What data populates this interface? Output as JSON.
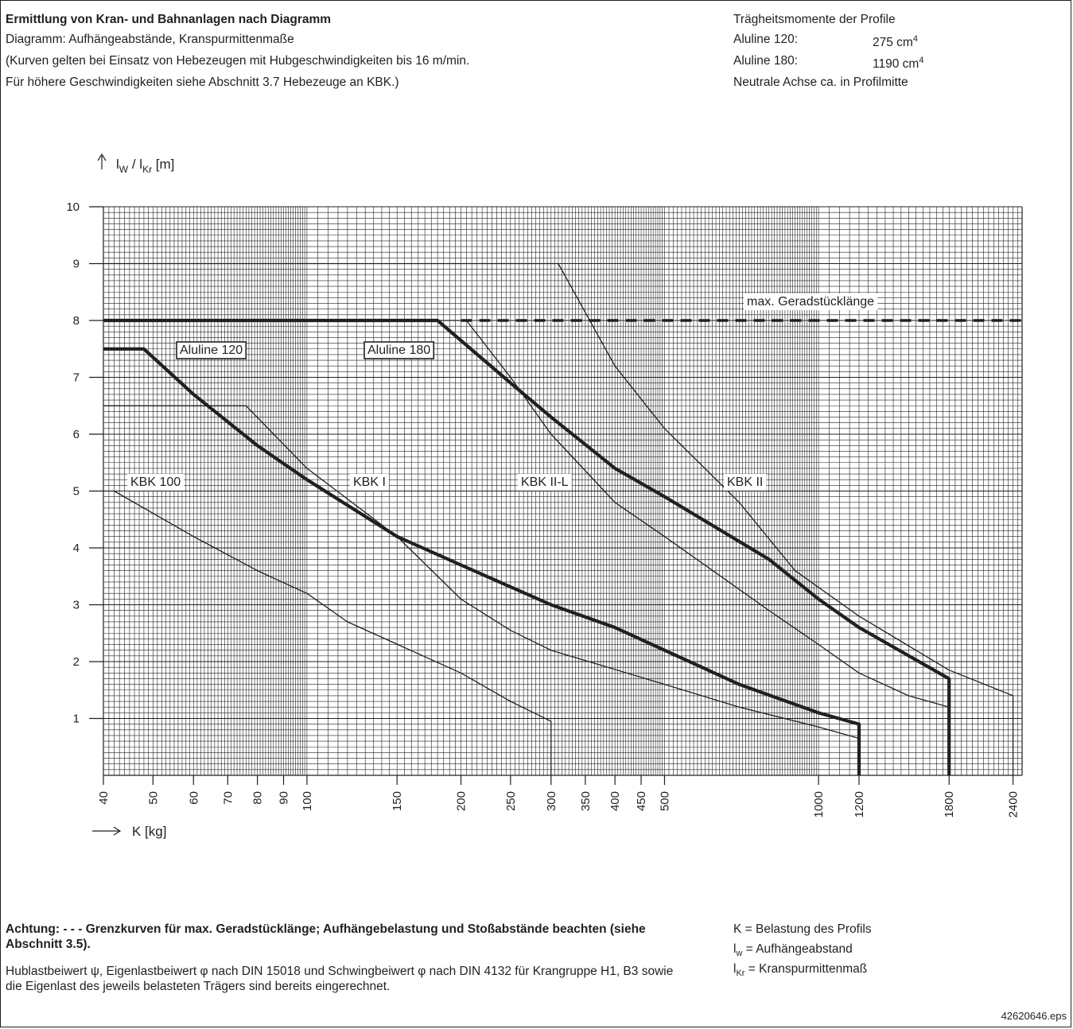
{
  "header": {
    "title": "Ermittlung von Kran- und Bahnanlagen nach Diagramm",
    "line2": "Diagramm: Aufhängeabstände, Kranspurmittenmaße",
    "line3": "(Kurven gelten bei Einsatz von Hebezeugen mit Hubgeschwindigkeiten bis 16 m/min.",
    "line4": "Für höhere Geschwindigkeiten siehe Abschnitt 3.7 Hebezeuge an KBK.)"
  },
  "inertia": {
    "title": "Trägheitsmomente der Profile",
    "rows": [
      {
        "label": "Aluline 120:",
        "value": "275 cm",
        "exp": "4"
      },
      {
        "label": "Aluline 180:",
        "value": "1190 cm",
        "exp": "4"
      }
    ],
    "note": "Neutrale Achse ca. in Profilmitte"
  },
  "chart_data": {
    "type": "line",
    "y_axis_label": {
      "main": "l",
      "sub1": "W",
      "sep": " / l",
      "sub2": "Kr",
      "unit": " [m]"
    },
    "x_axis_label": "K [kg]",
    "x_scale": "log",
    "xlim": [
      40,
      2500
    ],
    "ylim": [
      0,
      10
    ],
    "y_ticks": [
      "1",
      "2",
      "3",
      "4",
      "5",
      "6",
      "7",
      "8",
      "9",
      "10"
    ],
    "x_ticks": [
      "40",
      "50",
      "60",
      "70",
      "80",
      "90",
      "100",
      "150",
      "200",
      "250",
      "300",
      "350",
      "400",
      "450",
      "500",
      "1000",
      "1200",
      "1800",
      "2400"
    ],
    "grid": true,
    "series": [
      {
        "name": "KBK 100",
        "weight": "thin",
        "points": [
          [
            40,
            5
          ],
          [
            42,
            5
          ],
          [
            60,
            4.2
          ],
          [
            80,
            3.6
          ],
          [
            100,
            3.2
          ],
          [
            120,
            2.7
          ],
          [
            200,
            1.8
          ],
          [
            250,
            1.3
          ],
          [
            300,
            0.95
          ],
          [
            300,
            0
          ]
        ]
      },
      {
        "name": "KBK I",
        "weight": "thin",
        "points": [
          [
            40,
            6.5
          ],
          [
            76,
            6.5
          ],
          [
            100,
            5.4
          ],
          [
            150,
            4.2
          ],
          [
            200,
            3.1
          ],
          [
            250,
            2.55
          ],
          [
            300,
            2.2
          ],
          [
            500,
            1.6
          ],
          [
            700,
            1.2
          ],
          [
            1000,
            0.85
          ],
          [
            1200,
            0.65
          ]
        ]
      },
      {
        "name": "KBK II-L",
        "weight": "thin",
        "points": [
          [
            40,
            8
          ],
          [
            205,
            8
          ],
          [
            250,
            7
          ],
          [
            300,
            6
          ],
          [
            400,
            4.8
          ],
          [
            500,
            4.2
          ],
          [
            800,
            2.9
          ],
          [
            1000,
            2.3
          ],
          [
            1200,
            1.8
          ],
          [
            1500,
            1.4
          ],
          [
            1800,
            1.2
          ]
        ]
      },
      {
        "name": "KBK II",
        "weight": "thin",
        "points": [
          [
            40,
            9
          ],
          [
            310,
            9
          ],
          [
            400,
            7.2
          ],
          [
            500,
            6.1
          ],
          [
            700,
            4.8
          ],
          [
            900,
            3.6
          ],
          [
            1200,
            2.8
          ],
          [
            1800,
            1.85
          ],
          [
            2400,
            1.4
          ],
          [
            2400,
            0
          ]
        ]
      },
      {
        "name": "Aluline 120",
        "weight": "thick",
        "points": [
          [
            40,
            7.5
          ],
          [
            48,
            7.5
          ],
          [
            60,
            6.7
          ],
          [
            80,
            5.8
          ],
          [
            100,
            5.2
          ],
          [
            150,
            4.2
          ],
          [
            200,
            3.7
          ],
          [
            300,
            3
          ],
          [
            400,
            2.6
          ],
          [
            500,
            2.2
          ],
          [
            700,
            1.6
          ],
          [
            1000,
            1.1
          ],
          [
            1200,
            0.9
          ],
          [
            1200,
            0
          ]
        ]
      },
      {
        "name": "Aluline 180",
        "weight": "thick",
        "points": [
          [
            40,
            8
          ],
          [
            180,
            8
          ],
          [
            250,
            6.9
          ],
          [
            300,
            6.3
          ],
          [
            400,
            5.4
          ],
          [
            500,
            4.9
          ],
          [
            800,
            3.8
          ],
          [
            1000,
            3.1
          ],
          [
            1200,
            2.6
          ],
          [
            1800,
            1.7
          ],
          [
            1800,
            0
          ]
        ]
      },
      {
        "name": "max. Geradstücklänge",
        "weight": "dashed",
        "points": [
          [
            200,
            8
          ],
          [
            2500,
            8
          ]
        ]
      }
    ],
    "labels": {
      "kbk100": "KBK 100",
      "kbk1": "KBK I",
      "kbk2l": "KBK II-L",
      "kbk2": "KBK II",
      "aluline120": "Aluline 120",
      "aluline180": "Aluline 180",
      "maxlen": "max. Geradstücklänge"
    },
    "colors": {
      "ink": "#231f20",
      "grid": "#231f20"
    }
  },
  "footer": {
    "warning_bold": "Achtung: - - - Grenzkurven für max. Geradstücklänge; Aufhängebelastung und Stoßabstände beachten (siehe Abschnitt 3.5).",
    "body": "Hublastbeiwert ψ, Eigenlastbeiwert φ nach DIN 15018 und Schwingbeiwert φ nach DIN 4132 für Krangruppe H1, B3 sowie die Eigenlast des jeweils belasteten Trägers sind bereits eingerechnet.",
    "legend": [
      {
        "main": "K",
        "sub": "",
        "rest": " = Belastung des Profils"
      },
      {
        "main": "l",
        "sub": "w",
        "rest": " = Aufhängeabstand"
      },
      {
        "main": "l",
        "sub": "Kr",
        "rest": " = Kranspurmittenmaß"
      }
    ],
    "file_id": "42620646.eps"
  }
}
